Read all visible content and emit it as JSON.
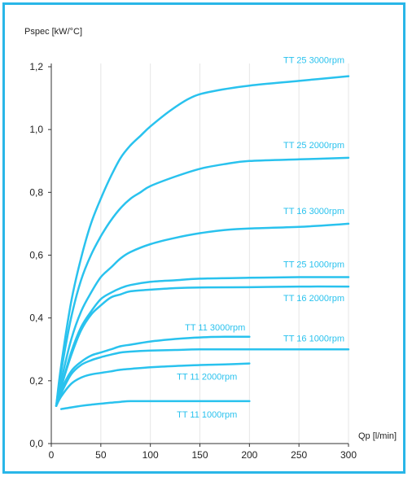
{
  "chart_data": {
    "type": "line",
    "title": "",
    "xlabel": "Qp [l/min]",
    "ylabel": "Pspec [kW/°C]",
    "xlim": [
      0,
      300
    ],
    "ylim": [
      0,
      1.2
    ],
    "xticks": [
      0,
      50,
      100,
      150,
      200,
      250,
      300
    ],
    "xtick_labels": [
      "0",
      "50",
      "100",
      "150",
      "200",
      "250",
      "300"
    ],
    "yticks": [
      0,
      0.2,
      0.4,
      0.6,
      0.8,
      1.0,
      1.2
    ],
    "ytick_labels": [
      "0,0",
      "0,2",
      "0,4",
      "0,6",
      "0,8",
      "1,0",
      "1,2"
    ],
    "grid": "vertical",
    "line_color": "#29c2ee",
    "series": [
      {
        "name": "TT 25 3000rpm",
        "x": [
          5,
          10,
          20,
          30,
          40,
          50,
          60,
          70,
          80,
          90,
          100,
          120,
          140,
          160,
          200,
          250,
          300
        ],
        "y": [
          0.12,
          0.25,
          0.45,
          0.59,
          0.7,
          0.78,
          0.85,
          0.91,
          0.95,
          0.98,
          1.01,
          1.06,
          1.1,
          1.12,
          1.14,
          1.155,
          1.17
        ]
      },
      {
        "name": "TT 25 2000rpm",
        "x": [
          5,
          10,
          20,
          30,
          40,
          50,
          60,
          70,
          80,
          90,
          100,
          125,
          150,
          175,
          200,
          250,
          300
        ],
        "y": [
          0.12,
          0.23,
          0.4,
          0.52,
          0.6,
          0.66,
          0.71,
          0.75,
          0.78,
          0.8,
          0.82,
          0.85,
          0.875,
          0.89,
          0.9,
          0.905,
          0.91
        ]
      },
      {
        "name": "TT 16 3000rpm",
        "x": [
          5,
          10,
          20,
          30,
          40,
          50,
          60,
          70,
          80,
          100,
          125,
          150,
          175,
          200,
          250,
          300
        ],
        "y": [
          0.12,
          0.2,
          0.33,
          0.42,
          0.48,
          0.53,
          0.56,
          0.59,
          0.61,
          0.635,
          0.655,
          0.67,
          0.68,
          0.685,
          0.69,
          0.7
        ]
      },
      {
        "name": "TT 25 1000rpm",
        "x": [
          5,
          10,
          20,
          30,
          40,
          50,
          60,
          70,
          80,
          100,
          125,
          150,
          200,
          250,
          300
        ],
        "y": [
          0.12,
          0.18,
          0.29,
          0.37,
          0.42,
          0.46,
          0.48,
          0.495,
          0.505,
          0.515,
          0.52,
          0.525,
          0.528,
          0.53,
          0.53
        ]
      },
      {
        "name": "TT 16 2000rpm",
        "x": [
          5,
          10,
          20,
          30,
          40,
          50,
          60,
          70,
          80,
          100,
          125,
          150,
          200,
          250,
          300
        ],
        "y": [
          0.12,
          0.18,
          0.28,
          0.36,
          0.41,
          0.44,
          0.465,
          0.475,
          0.485,
          0.49,
          0.495,
          0.497,
          0.498,
          0.5,
          0.5
        ]
      },
      {
        "name": "TT 11 3000rpm",
        "x": [
          5,
          10,
          20,
          30,
          40,
          50,
          60,
          70,
          80,
          100,
          125,
          150,
          175,
          200
        ],
        "y": [
          0.12,
          0.17,
          0.23,
          0.26,
          0.28,
          0.29,
          0.3,
          0.31,
          0.315,
          0.325,
          0.333,
          0.338,
          0.34,
          0.34
        ]
      },
      {
        "name": "TT 16 1000rpm",
        "x": [
          5,
          10,
          20,
          30,
          40,
          50,
          60,
          70,
          80,
          100,
          125,
          150,
          200,
          250,
          300
        ],
        "y": [
          0.12,
          0.16,
          0.22,
          0.25,
          0.265,
          0.275,
          0.283,
          0.29,
          0.293,
          0.296,
          0.298,
          0.3,
          0.3,
          0.3,
          0.3
        ]
      },
      {
        "name": "TT 11 2000rpm",
        "x": [
          5,
          10,
          20,
          30,
          40,
          50,
          60,
          70,
          80,
          100,
          125,
          150,
          175,
          200
        ],
        "y": [
          0.12,
          0.15,
          0.19,
          0.21,
          0.22,
          0.225,
          0.23,
          0.235,
          0.238,
          0.243,
          0.247,
          0.25,
          0.252,
          0.255
        ]
      },
      {
        "name": "TT 11 1000rpm",
        "x": [
          10,
          20,
          30,
          40,
          50,
          60,
          70,
          80,
          100,
          125,
          150,
          200
        ],
        "y": [
          0.11,
          0.115,
          0.12,
          0.124,
          0.127,
          0.13,
          0.133,
          0.135,
          0.135,
          0.135,
          0.135,
          0.135
        ]
      }
    ]
  }
}
